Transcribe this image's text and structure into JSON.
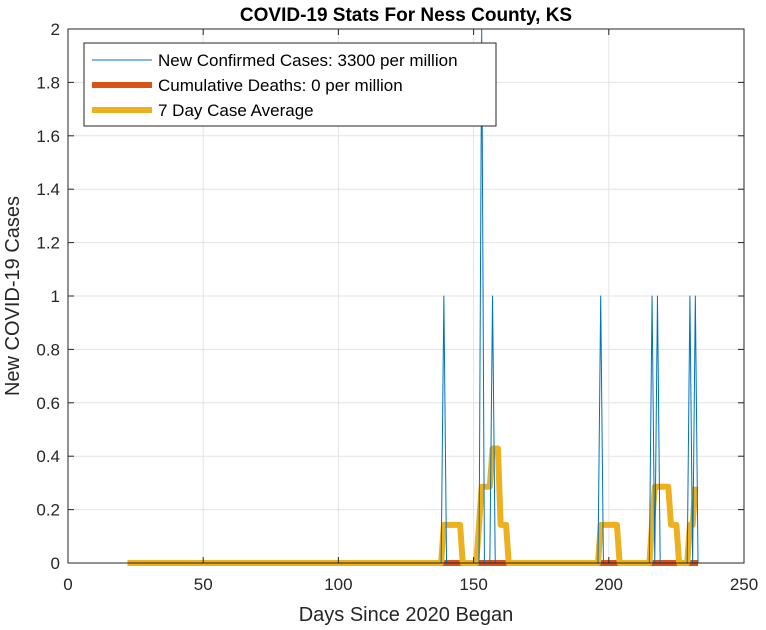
{
  "chart_data": {
    "type": "line",
    "title": "COVID-19 Stats For Ness County, KS",
    "xlabel": "Days Since 2020 Began",
    "ylabel": "New COVID-19 Cases",
    "xlim": [
      0,
      250
    ],
    "ylim": [
      0,
      2
    ],
    "xticks": [
      0,
      50,
      100,
      150,
      200,
      250
    ],
    "yticks": [
      0,
      0.2,
      0.4,
      0.6,
      0.8,
      1,
      1.2,
      1.4,
      1.6,
      1.8,
      2
    ],
    "xtick_labels": [
      "0",
      "50",
      "100",
      "150",
      "200",
      "250"
    ],
    "ytick_labels": [
      "0",
      "0.2",
      "0.4",
      "0.6",
      "0.8",
      "1",
      "1.2",
      "1.4",
      "1.6",
      "1.8",
      "2"
    ],
    "grid": true,
    "legend_position": "top-left",
    "series": [
      {
        "name": "New Confirmed Cases: 3300 per million",
        "color": "#0072BD",
        "line_style": "thin",
        "x": [
          22,
          138,
          139,
          140,
          152,
          153,
          154,
          156,
          157,
          158,
          196,
          197,
          198,
          215,
          216,
          217,
          218,
          219,
          229,
          230,
          231,
          232,
          233
        ],
        "y": [
          0,
          0,
          1,
          0,
          0,
          2,
          0,
          0,
          1,
          0,
          0,
          1,
          0,
          0,
          1,
          0,
          1,
          0,
          0,
          1,
          0,
          1,
          0
        ]
      },
      {
        "name": "Cumulative Deaths: 0 per million",
        "color": "#D95319",
        "line_style": "thick",
        "x": [
          22,
          233
        ],
        "y": [
          0,
          0
        ]
      },
      {
        "name": "7 Day Case Average",
        "color": "#EDB120",
        "line_style": "thick",
        "x": [
          22,
          138,
          139,
          145,
          146,
          151,
          152,
          153,
          156,
          157,
          159,
          160,
          162,
          163,
          196,
          197,
          203,
          204,
          215,
          216,
          217,
          222,
          223,
          225,
          226,
          229,
          230,
          231,
          232
        ],
        "y": [
          0,
          0,
          0.1429,
          0.1429,
          0,
          0,
          0.1429,
          0.2857,
          0.2857,
          0.4286,
          0.4286,
          0.1429,
          0.1429,
          0,
          0,
          0.1429,
          0.1429,
          0,
          0,
          0.1429,
          0.2857,
          0.2857,
          0.1429,
          0.1429,
          0,
          0,
          0.1429,
          0.1429,
          0.2857
        ]
      }
    ]
  }
}
